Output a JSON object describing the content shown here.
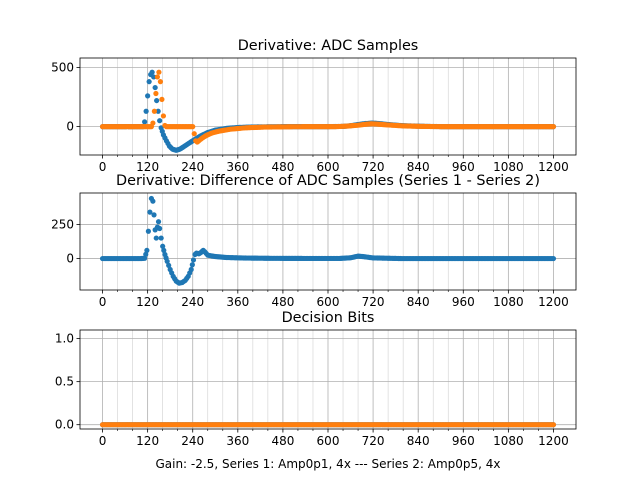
{
  "figure": {
    "xlabel": "Gain: -2.5, Series 1: Amp0p1, 4x --- Series 2: Amp0p5, 4x"
  },
  "colors": {
    "series1": "#1f77b4",
    "series2": "#ff7f0e",
    "grid": "#b0b0b0",
    "axis": "#000000"
  },
  "chart_data": [
    {
      "type": "scatter",
      "title": "Derivative: ADC Samples",
      "xlim": [
        -60,
        1260
      ],
      "ylim": [
        -240,
        580
      ],
      "xticks": [
        0,
        120,
        240,
        360,
        480,
        600,
        720,
        840,
        960,
        1080,
        1200
      ],
      "xtick_labels": [
        "0",
        "120",
        "240",
        "360",
        "480",
        "600",
        "720",
        "840",
        "960",
        "1080",
        "1200"
      ],
      "yticks": [
        0,
        500
      ],
      "ytick_labels": [
        "0",
        "500"
      ],
      "grid": true,
      "series": [
        {
          "color": "#1f77b4",
          "points": [
            [
              0,
              0
            ],
            [
              100,
              0
            ],
            [
              108,
              0
            ],
            [
              112,
              40
            ],
            [
              116,
              130
            ],
            [
              120,
              260
            ],
            [
              124,
              380
            ],
            [
              128,
              440
            ],
            [
              132,
              460
            ],
            [
              136,
              420
            ],
            [
              140,
              330
            ],
            [
              144,
              220
            ],
            [
              148,
              130
            ],
            [
              152,
              50
            ],
            [
              156,
              -10
            ],
            [
              162,
              -70
            ],
            [
              170,
              -120
            ],
            [
              178,
              -165
            ],
            [
              186,
              -190
            ],
            [
              196,
              -200
            ],
            [
              206,
              -190
            ],
            [
              216,
              -170
            ],
            [
              230,
              -140
            ],
            [
              245,
              -110
            ],
            [
              260,
              -80
            ],
            [
              280,
              -50
            ],
            [
              300,
              -30
            ],
            [
              330,
              -15
            ],
            [
              360,
              -7
            ],
            [
              400,
              -3
            ],
            [
              450,
              -1
            ],
            [
              500,
              0
            ],
            [
              550,
              0
            ],
            [
              600,
              0
            ],
            [
              640,
              2
            ],
            [
              660,
              8
            ],
            [
              680,
              18
            ],
            [
              700,
              26
            ],
            [
              715,
              30
            ],
            [
              730,
              28
            ],
            [
              760,
              18
            ],
            [
              800,
              8
            ],
            [
              850,
              3
            ],
            [
              900,
              0
            ],
            [
              1000,
              0
            ],
            [
              1100,
              0
            ],
            [
              1200,
              0
            ]
          ]
        },
        {
          "color": "#ff7f0e",
          "points": [
            [
              0,
              0
            ],
            [
              100,
              0
            ],
            [
              120,
              0
            ],
            [
              130,
              0
            ],
            [
              134,
              30
            ],
            [
              138,
              130
            ],
            [
              142,
              280
            ],
            [
              146,
              420
            ],
            [
              150,
              460
            ],
            [
              154,
              380
            ],
            [
              158,
              230
            ],
            [
              162,
              90
            ],
            [
              166,
              10
            ],
            [
              170,
              0
            ],
            [
              200,
              0
            ],
            [
              240,
              0
            ],
            [
              244,
              -60
            ],
            [
              248,
              -120
            ],
            [
              252,
              -130
            ],
            [
              258,
              -115
            ],
            [
              266,
              -95
            ],
            [
              276,
              -75
            ],
            [
              290,
              -55
            ],
            [
              310,
              -38
            ],
            [
              340,
              -22
            ],
            [
              380,
              -10
            ],
            [
              430,
              -4
            ],
            [
              500,
              -1
            ],
            [
              560,
              0
            ],
            [
              620,
              0
            ],
            [
              650,
              4
            ],
            [
              680,
              12
            ],
            [
              700,
              20
            ],
            [
              715,
              24
            ],
            [
              730,
              22
            ],
            [
              760,
              14
            ],
            [
              800,
              6
            ],
            [
              850,
              2
            ],
            [
              900,
              0
            ],
            [
              1000,
              0
            ],
            [
              1100,
              0
            ],
            [
              1200,
              0
            ]
          ]
        }
      ]
    },
    {
      "type": "scatter",
      "title": "Derivative: Difference of ADC Samples (Series 1 - Series 2)",
      "xlim": [
        -60,
        1260
      ],
      "ylim": [
        -230,
        480
      ],
      "xticks": [
        0,
        120,
        240,
        360,
        480,
        600,
        720,
        840,
        960,
        1080,
        1200
      ],
      "xtick_labels": [
        "0",
        "120",
        "240",
        "360",
        "480",
        "600",
        "720",
        "840",
        "960",
        "1080",
        "1200"
      ],
      "yticks": [
        0,
        250
      ],
      "ytick_labels": [
        "0",
        "250"
      ],
      "grid": true,
      "series": [
        {
          "color": "#1f77b4",
          "points": [
            [
              0,
              0
            ],
            [
              100,
              0
            ],
            [
              112,
              2
            ],
            [
              118,
              60
            ],
            [
              122,
              200
            ],
            [
              126,
              340
            ],
            [
              130,
              440
            ],
            [
              134,
              420
            ],
            [
              137,
              320
            ],
            [
              140,
              210
            ],
            [
              143,
              150
            ],
            [
              146,
              230
            ],
            [
              149,
              270
            ],
            [
              152,
              220
            ],
            [
              156,
              150
            ],
            [
              160,
              90
            ],
            [
              166,
              30
            ],
            [
              172,
              -20
            ],
            [
              180,
              -80
            ],
            [
              188,
              -130
            ],
            [
              196,
              -165
            ],
            [
              204,
              -180
            ],
            [
              212,
              -175
            ],
            [
              220,
              -160
            ],
            [
              228,
              -130
            ],
            [
              236,
              -80
            ],
            [
              242,
              -10
            ],
            [
              246,
              30
            ],
            [
              250,
              40
            ],
            [
              256,
              35
            ],
            [
              262,
              45
            ],
            [
              268,
              60
            ],
            [
              272,
              50
            ],
            [
              280,
              25
            ],
            [
              300,
              15
            ],
            [
              330,
              8
            ],
            [
              380,
              4
            ],
            [
              450,
              2
            ],
            [
              550,
              1
            ],
            [
              630,
              1
            ],
            [
              660,
              6
            ],
            [
              680,
              18
            ],
            [
              695,
              14
            ],
            [
              720,
              5
            ],
            [
              800,
              0
            ],
            [
              900,
              0
            ],
            [
              1000,
              0
            ],
            [
              1100,
              0
            ],
            [
              1200,
              0
            ]
          ]
        }
      ]
    },
    {
      "type": "scatter",
      "title": "Decision Bits",
      "xlim": [
        -60,
        1260
      ],
      "ylim": [
        -0.05,
        1.1
      ],
      "xticks": [
        0,
        120,
        240,
        360,
        480,
        600,
        720,
        840,
        960,
        1080,
        1200
      ],
      "xtick_labels": [
        "0",
        "120",
        "240",
        "360",
        "480",
        "600",
        "720",
        "840",
        "960",
        "1080",
        "1200"
      ],
      "yticks": [
        0.0,
        0.5,
        1.0
      ],
      "ytick_labels": [
        "0.0",
        "0.5",
        "1.0"
      ],
      "grid": true,
      "series": [
        {
          "color": "#1f77b4",
          "points": [
            [
              0,
              0
            ],
            [
              1200,
              0
            ]
          ]
        },
        {
          "color": "#ff7f0e",
          "points": [
            [
              0,
              0
            ],
            [
              1200,
              0
            ]
          ]
        }
      ]
    }
  ]
}
